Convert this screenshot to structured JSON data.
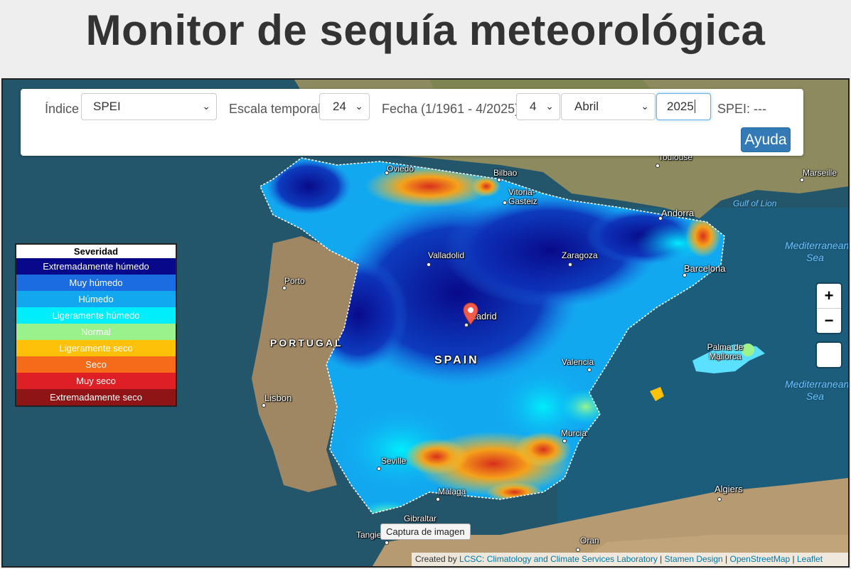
{
  "page_title": "Monitor de sequía meteorológica",
  "controls": {
    "index_label": "Índice",
    "index_value": "SPEI",
    "scale_label": "Escala temporal",
    "scale_value": "24",
    "date_label": "Fecha (1/1961 - 4/2025)",
    "month_num_value": "4",
    "month_name_value": "Abril",
    "year_value": "2025",
    "readout": "SPEI: ---",
    "help_button": "Ayuda"
  },
  "legend": {
    "title": "Severidad",
    "items": [
      {
        "label": "Extremadamente húmedo",
        "color": "#08088a"
      },
      {
        "label": "Muy húmedo",
        "color": "#1a6ce0"
      },
      {
        "label": "Húmedo",
        "color": "#12a8f0"
      },
      {
        "label": "Ligeramente húmedo",
        "color": "#00eefc"
      },
      {
        "label": "Normal",
        "color": "#99f28c"
      },
      {
        "label": "Ligeramente seco",
        "color": "#fec10a"
      },
      {
        "label": "Seco",
        "color": "#f56b1a"
      },
      {
        "label": "Muy seco",
        "color": "#df1f26"
      },
      {
        "label": "Extremadamente seco",
        "color": "#8f1416"
      }
    ]
  },
  "map": {
    "zoom_in": "+",
    "zoom_out": "−",
    "capture_button": "Captura de imagen",
    "attribution_prefix": "Created by",
    "attribution_links": [
      "LCSC: Climatology and Climate Services Laboratory",
      "Stamen Design",
      "OpenStreetMap",
      "Leaflet"
    ],
    "labels": {
      "oviedo": "Oviedo",
      "bilbao": "Bilbao",
      "vitoria": "Vitoria-Gasteiz",
      "toulouse": "Toulouse",
      "marseille": "Marseille",
      "gulf": "Gulf of Lion",
      "andorra": "Andorra",
      "med1": "Mediterranean Sea",
      "med2": "Mediterranean Sea",
      "valladolid": "Valladolid",
      "zaragoza": "Zaragoza",
      "barcelona": "Barcelona",
      "porto": "Porto",
      "madrid": "Madrid",
      "portugal": "PORTUGAL",
      "spain": "SPAIN",
      "palma": "Palma de Mallorca",
      "valencia": "Valencia",
      "lisbon": "Lisbon",
      "murcia": "Murcia",
      "seville": "Seville",
      "malaga": "Málaga",
      "algiers": "Algiers",
      "gibraltar": "Gibraltar",
      "tangier": "Tangier",
      "oran": "Oran"
    }
  }
}
